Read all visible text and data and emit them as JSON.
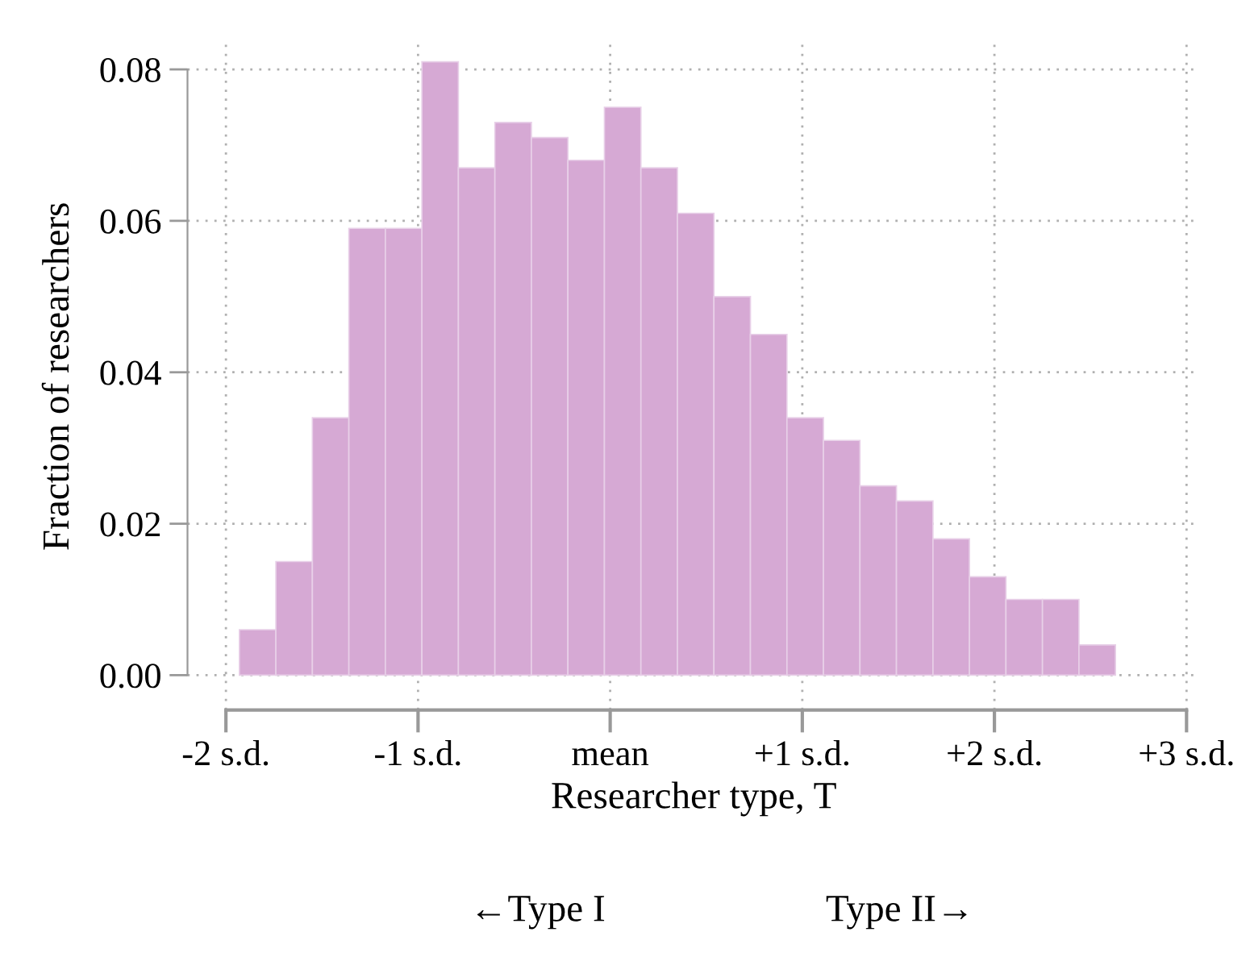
{
  "chart_data": {
    "type": "histogram",
    "xlabel": "Researcher type, T",
    "ylabel": "Fraction of researchers",
    "bins": [
      -1.93,
      -1.74,
      -1.55,
      -1.36,
      -1.17,
      -0.98,
      -0.79,
      -0.6,
      -0.41,
      -0.22,
      -0.03,
      0.16,
      0.35,
      0.54,
      0.73,
      0.92,
      1.11,
      1.3,
      1.49,
      1.68,
      1.87,
      2.06,
      2.25,
      2.44,
      2.63
    ],
    "values": [
      0.006,
      0.015,
      0.034,
      0.059,
      0.059,
      0.081,
      0.067,
      0.073,
      0.071,
      0.068,
      0.075,
      0.067,
      0.061,
      0.05,
      0.045,
      0.034,
      0.031,
      0.025,
      0.023,
      0.018,
      0.013,
      0.01,
      0.01,
      0.004
    ],
    "color": "#d6a9d4",
    "xlim": [
      -2.2,
      3.07
    ],
    "ylim": [
      -0.0046,
      0.0835
    ],
    "xticks": [
      {
        "value": -2,
        "label": "-2 s.d."
      },
      {
        "value": -1,
        "label": "-1 s.d."
      },
      {
        "value": 0,
        "label": "mean"
      },
      {
        "value": 1,
        "label": "+1 s.d."
      },
      {
        "value": 2,
        "label": "+2 s.d."
      },
      {
        "value": 3,
        "label": "+3 s.d."
      }
    ],
    "yticks": [
      {
        "value": 0,
        "label": "0.00"
      },
      {
        "value": 0.02,
        "label": "0.02"
      },
      {
        "value": 0.04,
        "label": "0.04"
      },
      {
        "value": 0.06,
        "label": "0.06"
      },
      {
        "value": 0.08,
        "label": "0.08"
      }
    ],
    "grid": true,
    "annotations": [
      "←Type I",
      "Type II→"
    ]
  }
}
